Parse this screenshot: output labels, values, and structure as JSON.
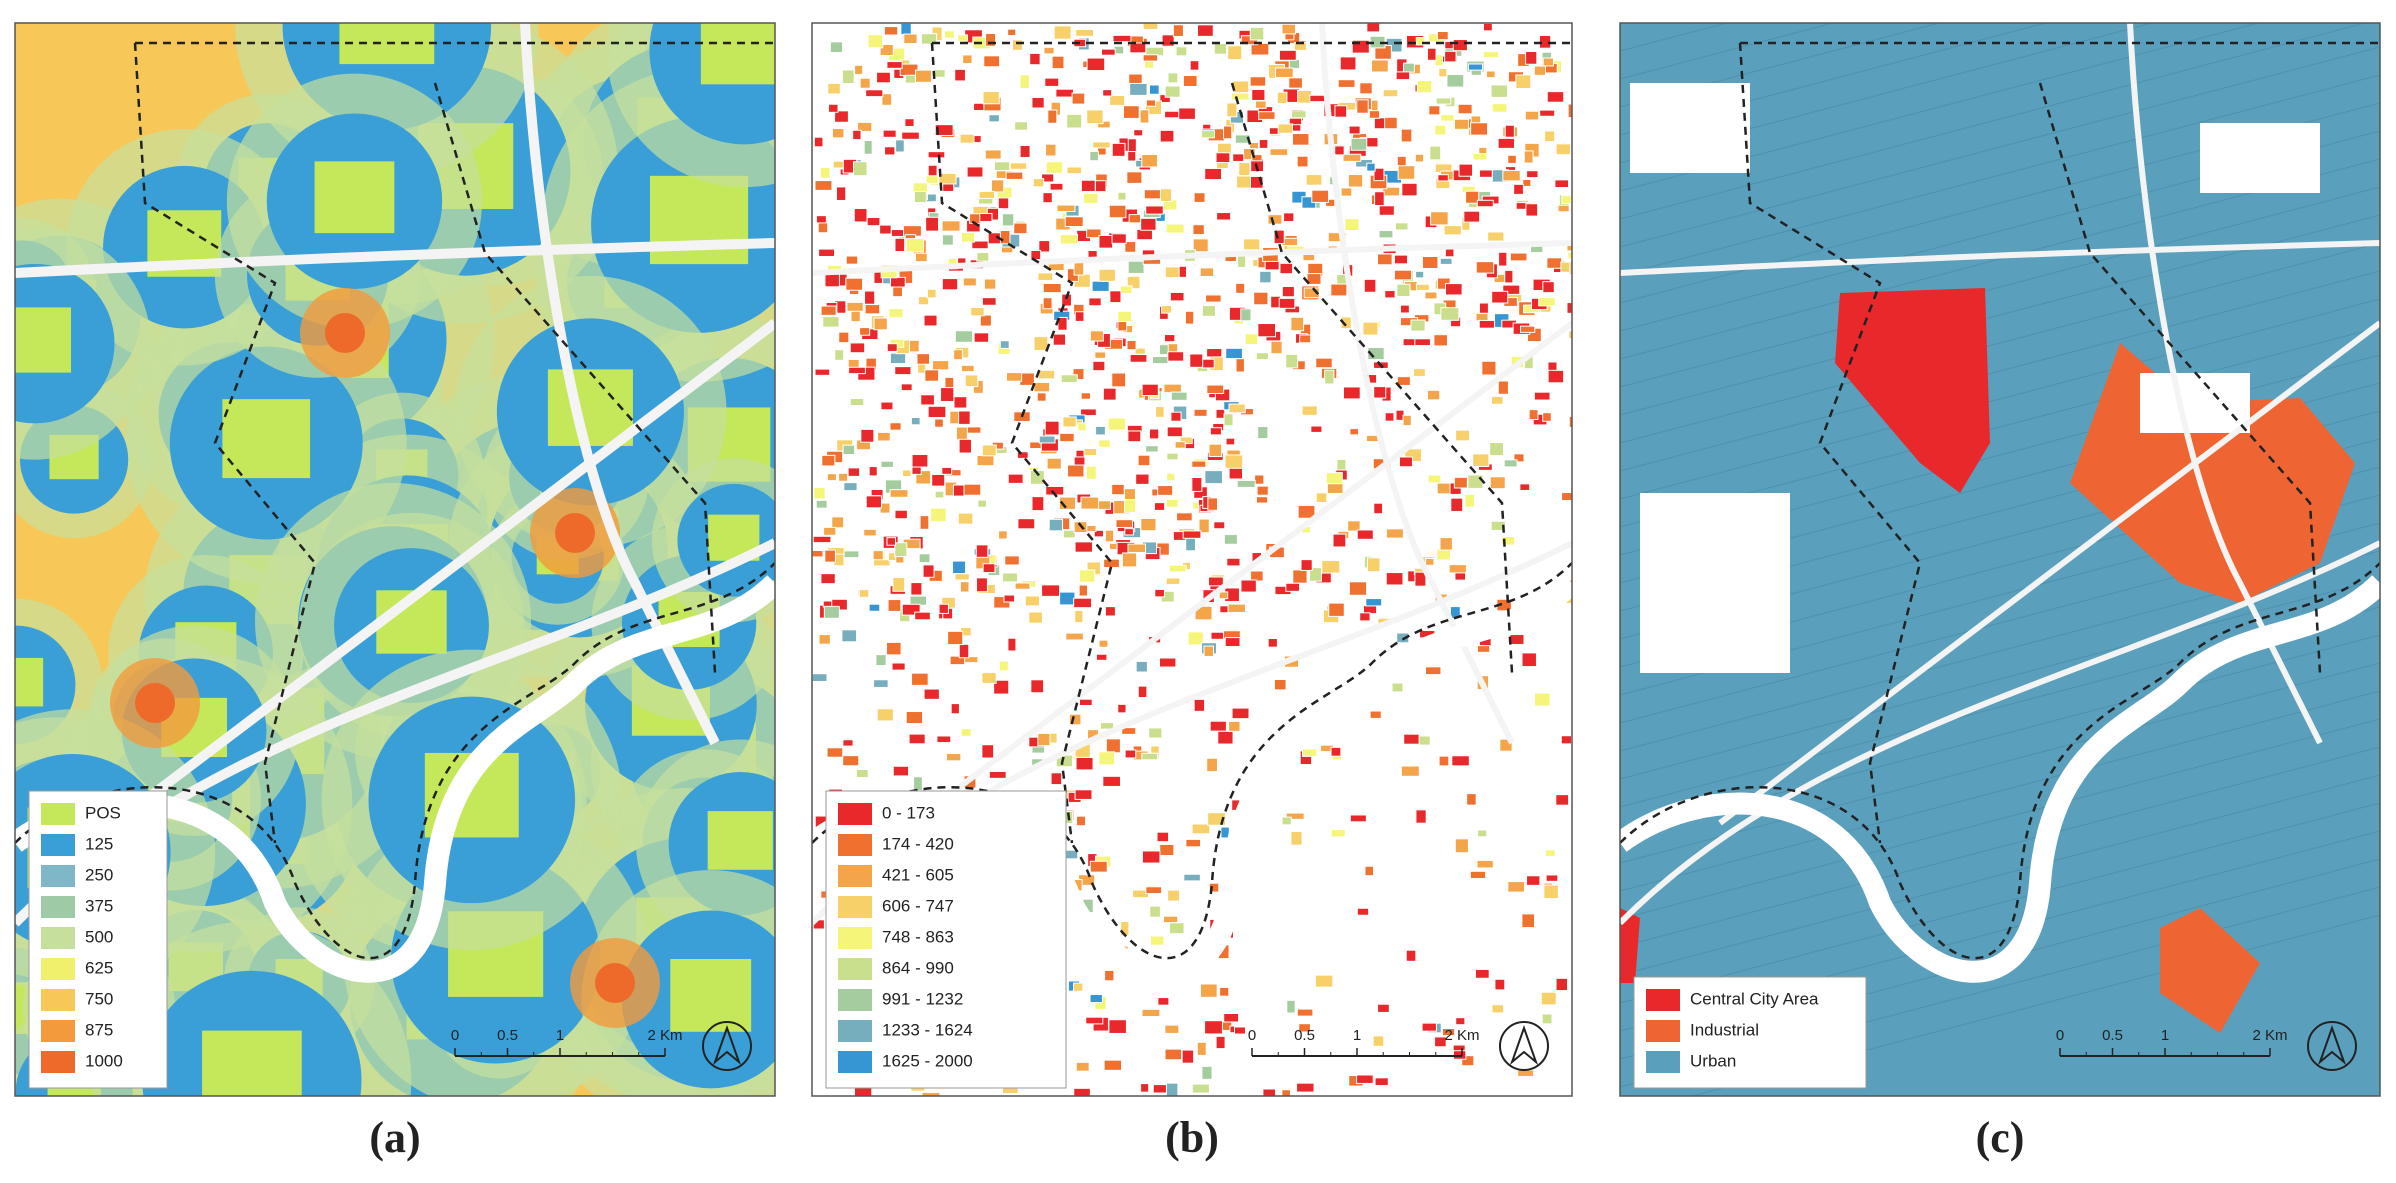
{
  "panels": [
    {
      "label": "(a)",
      "legend": [
        {
          "label": "POS",
          "color": "#c5e85a"
        },
        {
          "label": "125",
          "color": "#3a9fd6"
        },
        {
          "label": "250",
          "color": "#7fb7c9"
        },
        {
          "label": "375",
          "color": "#9fcaa6"
        },
        {
          "label": "500",
          "color": "#c6df9c"
        },
        {
          "label": "625",
          "color": "#f0f06c"
        },
        {
          "label": "750",
          "color": "#f7c858"
        },
        {
          "label": "875",
          "color": "#f39a3c"
        },
        {
          "label": "1000",
          "color": "#ee6a2a"
        }
      ],
      "scale_bar": [
        "0",
        "0.5",
        "1",
        "2 Km"
      ]
    },
    {
      "label": "(b)",
      "legend": [
        {
          "label": "0 - 173",
          "color": "#e8282a"
        },
        {
          "label": "174 - 420",
          "color": "#f0702f"
        },
        {
          "label": "421 - 605",
          "color": "#f4a54a"
        },
        {
          "label": "606 - 747",
          "color": "#f8d06a"
        },
        {
          "label": "748 - 863",
          "color": "#f5f57a"
        },
        {
          "label": "864 - 990",
          "color": "#c9df8e"
        },
        {
          "label": "991 - 1232",
          "color": "#a5cc9e"
        },
        {
          "label": "1233 - 1624",
          "color": "#77aebd"
        },
        {
          "label": "1625 - 2000",
          "color": "#3696d4"
        }
      ],
      "scale_bar": [
        "0",
        "0.5",
        "1",
        "2 Km"
      ]
    },
    {
      "label": "(c)",
      "legend": [
        {
          "label": "Central City Area",
          "color": "#e8282a"
        },
        {
          "label": "Industrial",
          "color": "#ef6433"
        },
        {
          "label": "Urban",
          "color": "#5aa0bd"
        }
      ],
      "scale_bar": [
        "0",
        "0.5",
        "1",
        "2 Km"
      ]
    }
  ]
}
